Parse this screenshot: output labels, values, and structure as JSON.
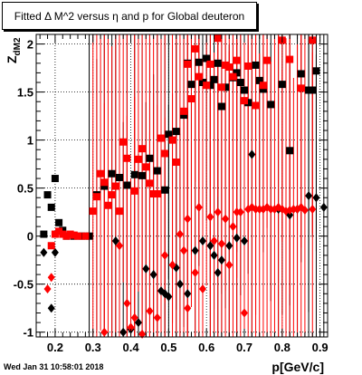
{
  "chart_data": {
    "type": "scatter",
    "title": "Fitted Δ M^2 versus η and p for Global deuteron",
    "xlabel": "p[GeV/c]",
    "ylabel": "Z_dM2",
    "xlim": [
      0.15,
      0.92
    ],
    "ylim": [
      -1.05,
      2.1
    ],
    "x_ticks": [
      0.2,
      0.3,
      0.4,
      0.5,
      0.6,
      0.7,
      0.8,
      0.9
    ],
    "x_tick_labels": [
      "0.2",
      "0.3",
      "0.4",
      "0.5",
      "0.6",
      "0.7",
      "0.8",
      "0.9"
    ],
    "y_ticks": [
      -1,
      -0.5,
      0,
      0.5,
      1,
      1.5,
      2
    ],
    "y_tick_labels": [
      "-1",
      "-0.5",
      "0",
      "0.5",
      "1",
      "1.5",
      "2"
    ],
    "grid": true,
    "timestamp": "Wed Jan 31 10:58:01 2018",
    "series": [
      {
        "marker": "square",
        "color": "#000000",
        "points": [
          [
            0.17,
            0.02
          ],
          [
            0.18,
            0.43
          ],
          [
            0.19,
            0.3
          ],
          [
            0.2,
            0.6
          ],
          [
            0.21,
            0.14
          ],
          [
            0.22,
            0.06
          ],
          [
            0.23,
            0.0
          ],
          [
            0.25,
            0.0
          ],
          [
            0.27,
            0.0
          ],
          [
            0.29,
            0.0
          ],
          [
            0.31,
            0.43
          ],
          [
            0.33,
            0.52
          ],
          [
            0.35,
            0.65
          ],
          [
            0.37,
            0.61
          ],
          [
            0.39,
            0.53
          ],
          [
            0.41,
            0.64
          ],
          [
            0.43,
            0.63
          ],
          [
            0.45,
            0.81
          ],
          [
            0.47,
            0.68
          ],
          [
            0.49,
            0.48
          ],
          [
            0.5,
            1.06
          ],
          [
            0.52,
            1.09
          ],
          [
            0.54,
            1.26
          ],
          [
            0.55,
            1.8
          ],
          [
            0.56,
            1.58
          ],
          [
            0.58,
            1.81
          ],
          [
            0.59,
            1.6
          ],
          [
            0.6,
            1.85
          ],
          [
            0.61,
            1.57
          ],
          [
            0.62,
            1.63
          ],
          [
            0.63,
            1.8
          ],
          [
            0.64,
            1.35
          ],
          [
            0.65,
            1.55
          ],
          [
            0.67,
            1.65
          ],
          [
            0.68,
            1.7
          ],
          [
            0.69,
            1.6
          ],
          [
            0.7,
            1.52
          ],
          [
            0.71,
            1.39
          ],
          [
            0.73,
            1.78
          ],
          [
            0.74,
            1.62
          ],
          [
            0.75,
            1.53
          ],
          [
            0.77,
            1.37
          ],
          [
            0.8,
            1.58
          ],
          [
            0.82,
            0.89
          ],
          [
            0.85,
            1.69
          ],
          [
            0.87,
            1.52
          ],
          [
            0.88,
            1.52
          ],
          [
            0.89,
            1.72
          ]
        ]
      },
      {
        "marker": "diamond",
        "color": "#000000",
        "points": [
          [
            0.17,
            -0.17
          ],
          [
            0.19,
            -0.75
          ],
          [
            0.2,
            -0.17
          ],
          [
            0.44,
            -0.34
          ],
          [
            0.46,
            -0.4
          ],
          [
            0.48,
            -0.57
          ],
          [
            0.49,
            -0.6
          ],
          [
            0.5,
            -0.63
          ],
          [
            0.52,
            -0.33
          ],
          [
            0.53,
            -0.5
          ],
          [
            0.55,
            -0.6
          ],
          [
            0.57,
            -0.15
          ],
          [
            0.59,
            -0.05
          ],
          [
            0.61,
            -0.1
          ],
          [
            0.62,
            -0.2
          ],
          [
            0.63,
            -0.38
          ],
          [
            0.64,
            -0.25
          ],
          [
            0.66,
            -0.1
          ],
          [
            0.68,
            -0.02
          ],
          [
            0.7,
            -0.05
          ],
          [
            0.72,
            0.85
          ],
          [
            0.79,
            0.28
          ],
          [
            0.82,
            0.22
          ],
          [
            0.84,
            0.28
          ],
          [
            0.87,
            0.42
          ],
          [
            0.89,
            0.4
          ],
          [
            0.91,
            0.3
          ],
          [
            0.38,
            -1.0
          ],
          [
            0.4,
            -0.97
          ],
          [
            0.42,
            -0.9
          ],
          [
            0.36,
            -0.05
          ]
        ]
      },
      {
        "marker": "square",
        "color": "#ff0000",
        "points": [
          [
            0.19,
            -0.1
          ],
          [
            0.2,
            0.02
          ],
          [
            0.21,
            0.05
          ],
          [
            0.22,
            0.02
          ],
          [
            0.23,
            0.0
          ],
          [
            0.24,
            0.02
          ],
          [
            0.25,
            0.01
          ],
          [
            0.26,
            0.0
          ],
          [
            0.28,
            0.0
          ],
          [
            0.3,
            0.26
          ],
          [
            0.31,
            0.41
          ],
          [
            0.32,
            0.65
          ],
          [
            0.33,
            0.56
          ],
          [
            0.34,
            0.32
          ],
          [
            0.35,
            0.43
          ],
          [
            0.36,
            0.52
          ],
          [
            0.37,
            0.26
          ],
          [
            0.38,
            0.98
          ],
          [
            0.39,
            0.81
          ],
          [
            0.41,
            0.47
          ],
          [
            0.42,
            0.8
          ],
          [
            0.43,
            0.91
          ],
          [
            0.44,
            0.72
          ],
          [
            0.45,
            0.55
          ],
          [
            0.46,
            0.44
          ],
          [
            0.47,
            0.44
          ],
          [
            0.48,
            1.02
          ],
          [
            0.49,
            0.86
          ],
          [
            0.51,
            1.0
          ],
          [
            0.52,
            0.77
          ],
          [
            0.54,
            1.3
          ],
          [
            0.55,
            1.79
          ],
          [
            0.56,
            1.43
          ],
          [
            0.57,
            1.95
          ],
          [
            0.58,
            1.66
          ],
          [
            0.6,
            1.57
          ],
          [
            0.61,
            1.79
          ],
          [
            0.63,
            2.06
          ],
          [
            0.64,
            1.55
          ],
          [
            0.65,
            1.78
          ],
          [
            0.66,
            1.76
          ],
          [
            0.67,
            1.66
          ],
          [
            0.68,
            1.83
          ],
          [
            0.7,
            1.41
          ],
          [
            0.71,
            1.77
          ],
          [
            0.73,
            1.36
          ],
          [
            0.75,
            1.57
          ],
          [
            0.76,
            1.83
          ],
          [
            0.8,
            2.04
          ],
          [
            0.82,
            1.84
          ],
          [
            0.85,
            1.54
          ],
          [
            0.88,
            2.04
          ]
        ]
      },
      {
        "marker": "diamond",
        "color": "#ff0000",
        "points": [
          [
            0.18,
            -0.55
          ],
          [
            0.19,
            -0.43
          ],
          [
            0.33,
            -1.0
          ],
          [
            0.37,
            -0.1
          ],
          [
            0.39,
            -0.7
          ],
          [
            0.41,
            -0.85
          ],
          [
            0.43,
            -1.02
          ],
          [
            0.45,
            -0.78
          ],
          [
            0.47,
            -0.85
          ],
          [
            0.49,
            -0.2
          ],
          [
            0.51,
            -0.3
          ],
          [
            0.53,
            0.02
          ],
          [
            0.54,
            -0.15
          ],
          [
            0.55,
            -0.75
          ],
          [
            0.57,
            -0.38
          ],
          [
            0.59,
            -0.55
          ],
          [
            0.61,
            0.2
          ],
          [
            0.62,
            -0.05
          ],
          [
            0.63,
            0.25
          ],
          [
            0.64,
            -0.08
          ],
          [
            0.65,
            0.18
          ],
          [
            0.66,
            -0.3
          ],
          [
            0.67,
            0.1
          ],
          [
            0.68,
            0.25
          ],
          [
            0.69,
            0.25
          ],
          [
            0.7,
            -0.8
          ],
          [
            0.71,
            0.28
          ],
          [
            0.72,
            0.3
          ],
          [
            0.73,
            0.28
          ],
          [
            0.74,
            0.28
          ],
          [
            0.75,
            0.28
          ],
          [
            0.76,
            0.3
          ],
          [
            0.77,
            0.28
          ],
          [
            0.78,
            0.28
          ],
          [
            0.79,
            0.3
          ],
          [
            0.8,
            0.28
          ],
          [
            0.81,
            0.26
          ],
          [
            0.82,
            0.27
          ],
          [
            0.83,
            0.28
          ],
          [
            0.84,
            0.28
          ],
          [
            0.85,
            0.3
          ],
          [
            0.86,
            0.27
          ],
          [
            0.88,
            0.28
          ],
          [
            0.55,
            0.18
          ],
          [
            0.58,
            0.3
          ],
          [
            0.4,
            -0.95
          ]
        ]
      }
    ]
  }
}
